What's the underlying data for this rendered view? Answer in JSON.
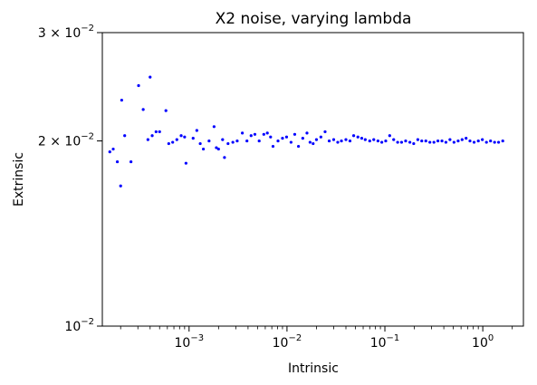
{
  "chart_data": {
    "type": "scatter",
    "title": "X2 noise, varying lambda",
    "xlabel": "Intrinsic",
    "ylabel": "Extrinsic",
    "xscale": "log",
    "yscale": "log",
    "xlim": [
      0.00013,
      2.6
    ],
    "ylim": [
      0.01,
      0.03
    ],
    "grid": false,
    "marker_color": "#0000ff",
    "x_ticks": [
      {
        "value": 0.001,
        "base": "10",
        "exp": "−3"
      },
      {
        "value": 0.01,
        "base": "10",
        "exp": "−2"
      },
      {
        "value": 0.1,
        "base": "10",
        "exp": "−1"
      },
      {
        "value": 1,
        "base": "10",
        "exp": "0"
      }
    ],
    "y_ticks": [
      {
        "value": 0.01,
        "base": "10",
        "exp": "−2"
      },
      {
        "value": 0.02,
        "base": "2 × 10",
        "exp": "−2"
      },
      {
        "value": 0.03,
        "base": "3 × 10",
        "exp": "−2"
      }
    ],
    "points": [
      [
        0.000155,
        0.0192
      ],
      [
        0.000168,
        0.0194
      ],
      [
        0.000185,
        0.0185
      ],
      [
        0.0002,
        0.0169
      ],
      [
        0.000205,
        0.0233
      ],
      [
        0.00022,
        0.0204
      ],
      [
        0.000255,
        0.0185
      ],
      [
        0.000305,
        0.0246
      ],
      [
        0.00034,
        0.0225
      ],
      [
        0.00038,
        0.0201
      ],
      [
        0.0004,
        0.0254
      ],
      [
        0.00042,
        0.0204
      ],
      [
        0.00046,
        0.0207
      ],
      [
        0.0005,
        0.0207
      ],
      [
        0.00058,
        0.0224
      ],
      [
        0.00062,
        0.0198
      ],
      [
        0.00068,
        0.0199
      ],
      [
        0.00075,
        0.0201
      ],
      [
        0.00083,
        0.0204
      ],
      [
        0.0009,
        0.0203
      ],
      [
        0.00093,
        0.0184
      ],
      [
        0.0011,
        0.0202
      ],
      [
        0.0012,
        0.0208
      ],
      [
        0.0013,
        0.0198
      ],
      [
        0.0014,
        0.0194
      ],
      [
        0.0016,
        0.02
      ],
      [
        0.0018,
        0.0211
      ],
      [
        0.0019,
        0.0195
      ],
      [
        0.002,
        0.0194
      ],
      [
        0.0022,
        0.0201
      ],
      [
        0.0023,
        0.0188
      ],
      [
        0.0025,
        0.0198
      ],
      [
        0.0028,
        0.0199
      ],
      [
        0.0031,
        0.02
      ],
      [
        0.0035,
        0.0206
      ],
      [
        0.0039,
        0.02
      ],
      [
        0.0043,
        0.0204
      ],
      [
        0.0047,
        0.0205
      ],
      [
        0.0052,
        0.02
      ],
      [
        0.0058,
        0.0205
      ],
      [
        0.0063,
        0.0206
      ],
      [
        0.0068,
        0.0203
      ],
      [
        0.0072,
        0.0196
      ],
      [
        0.0081,
        0.02
      ],
      [
        0.009,
        0.0202
      ],
      [
        0.0099,
        0.0203
      ],
      [
        0.011,
        0.0199
      ],
      [
        0.012,
        0.0205
      ],
      [
        0.0131,
        0.0196
      ],
      [
        0.0145,
        0.0202
      ],
      [
        0.016,
        0.0206
      ],
      [
        0.0172,
        0.0199
      ],
      [
        0.0185,
        0.0198
      ],
      [
        0.02,
        0.0201
      ],
      [
        0.0222,
        0.0203
      ],
      [
        0.0245,
        0.0207
      ],
      [
        0.027,
        0.02
      ],
      [
        0.03,
        0.0201
      ],
      [
        0.033,
        0.0199
      ],
      [
        0.036,
        0.02
      ],
      [
        0.04,
        0.0201
      ],
      [
        0.044,
        0.02
      ],
      [
        0.048,
        0.0204
      ],
      [
        0.053,
        0.0203
      ],
      [
        0.058,
        0.0202
      ],
      [
        0.063,
        0.0201
      ],
      [
        0.07,
        0.02
      ],
      [
        0.077,
        0.0201
      ],
      [
        0.085,
        0.02
      ],
      [
        0.093,
        0.0199
      ],
      [
        0.102,
        0.02
      ],
      [
        0.112,
        0.0204
      ],
      [
        0.123,
        0.0201
      ],
      [
        0.135,
        0.0199
      ],
      [
        0.148,
        0.0199
      ],
      [
        0.163,
        0.02
      ],
      [
        0.18,
        0.0199
      ],
      [
        0.197,
        0.0198
      ],
      [
        0.217,
        0.0201
      ],
      [
        0.238,
        0.02
      ],
      [
        0.262,
        0.02
      ],
      [
        0.288,
        0.0199
      ],
      [
        0.317,
        0.0199
      ],
      [
        0.348,
        0.02
      ],
      [
        0.383,
        0.02
      ],
      [
        0.42,
        0.0199
      ],
      [
        0.462,
        0.0201
      ],
      [
        0.508,
        0.0199
      ],
      [
        0.56,
        0.02
      ],
      [
        0.615,
        0.0201
      ],
      [
        0.675,
        0.0202
      ],
      [
        0.74,
        0.02
      ],
      [
        0.815,
        0.0199
      ],
      [
        0.9,
        0.02
      ],
      [
        0.99,
        0.0201
      ],
      [
        1.09,
        0.0199
      ],
      [
        1.2,
        0.02
      ],
      [
        1.32,
        0.0199
      ],
      [
        1.45,
        0.0199
      ],
      [
        1.6,
        0.02
      ]
    ]
  }
}
